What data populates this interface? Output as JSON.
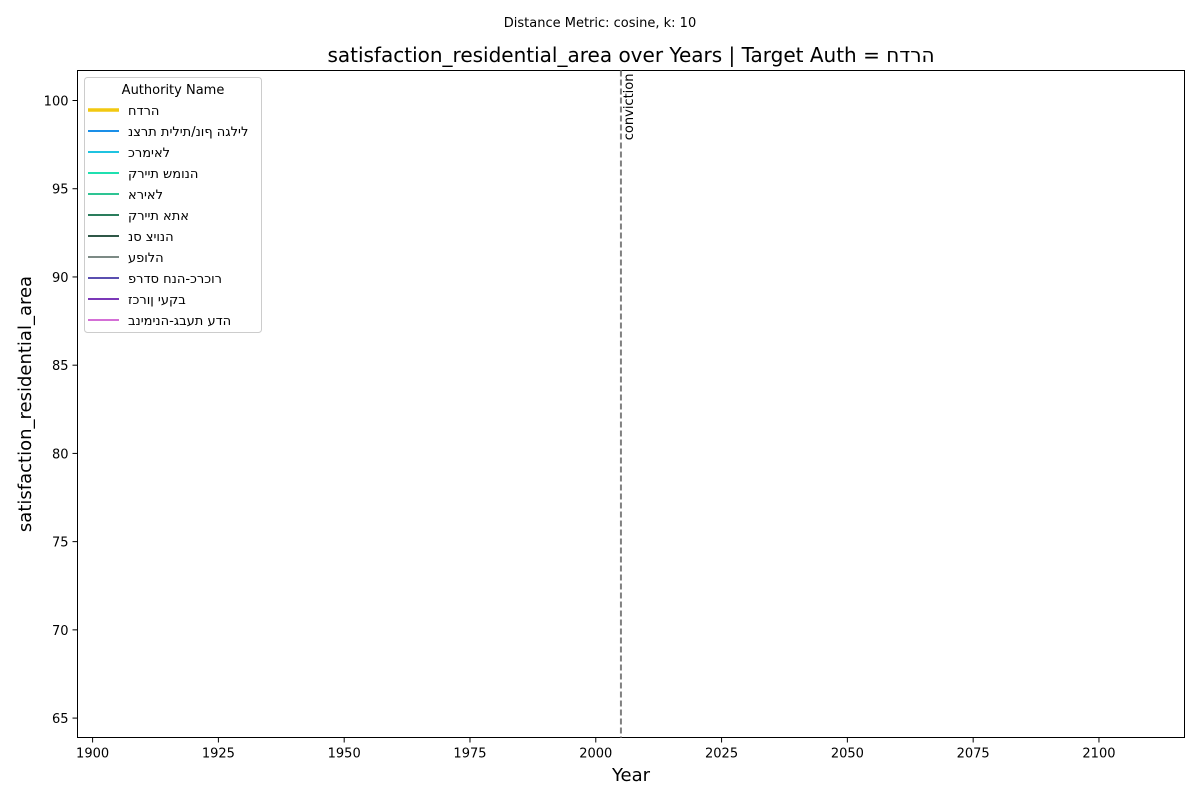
{
  "chart_data": {
    "type": "line",
    "suptitle": "Distance Metric: cosine, k: 10",
    "title": "satisfaction_residential_area over Years | Target Auth = הרדח",
    "xlabel": "Year",
    "ylabel": "satisfaction_residential_area",
    "xlim": [
      1897,
      2117
    ],
    "ylim": [
      63.9,
      101.7
    ],
    "xticks": [
      1900,
      1925,
      1950,
      1975,
      2000,
      2025,
      2050,
      2075,
      2100
    ],
    "yticks": [
      65,
      70,
      75,
      80,
      85,
      90,
      95,
      100
    ],
    "grid": false,
    "vline": {
      "x": 2005,
      "label": "conviction",
      "color": "#808080",
      "style": "dashed"
    },
    "legend": {
      "title": "Authority Name",
      "placement": "upper-left",
      "entries": [
        {
          "name": "הרדח",
          "color": "#f2c811",
          "highlight": true
        },
        {
          "name": "לילגה ףונ/תילית תרצנ",
          "color": "#1a8fe8",
          "highlight": false
        },
        {
          "name": "לאימרכ",
          "color": "#1fc3e0",
          "highlight": false
        },
        {
          "name": "הנומש תיירק",
          "color": "#1fe0b0",
          "highlight": false
        },
        {
          "name": "לאירא",
          "color": "#2ec493",
          "highlight": false
        },
        {
          "name": "אתא תיירק",
          "color": "#2a7d5c",
          "highlight": false
        },
        {
          "name": "הנויצ סנ",
          "color": "#2f5747",
          "highlight": false
        },
        {
          "name": "הלופע",
          "color": "#7c8a85",
          "highlight": false
        },
        {
          "name": "רוכרכ-הנח סדרפ",
          "color": "#5a4fb0",
          "highlight": false
        },
        {
          "name": "בקעי ןורכז",
          "color": "#7b38b8",
          "highlight": false
        },
        {
          "name": "הדע תעבג-הנימינב",
          "color": "#d46fd6",
          "highlight": false
        }
      ]
    },
    "series": []
  }
}
